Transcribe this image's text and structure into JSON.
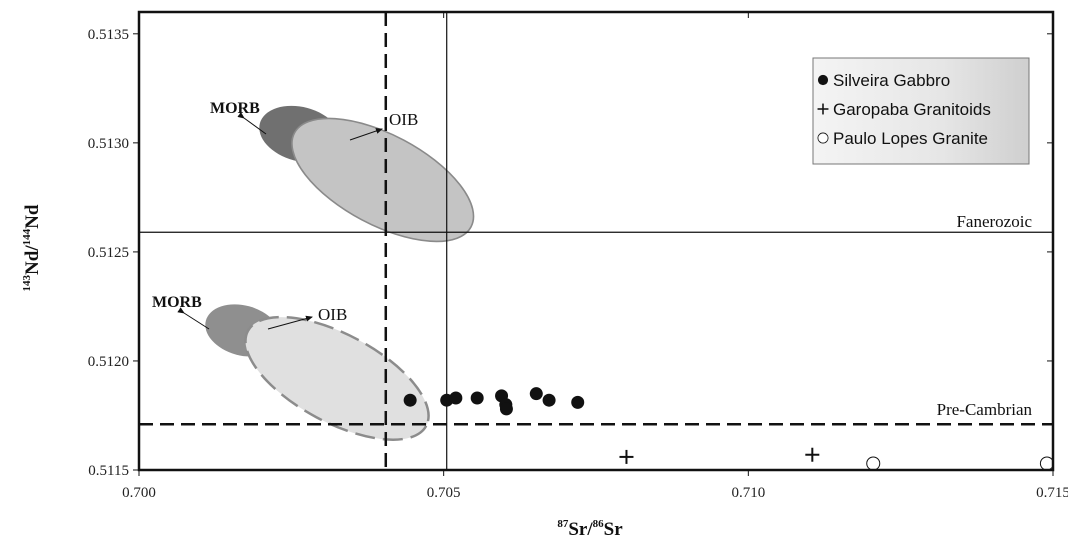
{
  "chart_data": {
    "type": "scatter",
    "title": "",
    "xlabel": {
      "iso_a": "87",
      "el_a": "Sr",
      "sep": "/",
      "iso_b": "86",
      "el_b": "Sr"
    },
    "ylabel": {
      "iso_a": "143",
      "el_a": "Nd",
      "sep": "/",
      "iso_b": "144",
      "el_b": "Nd"
    },
    "xlim": [
      0.7,
      0.715
    ],
    "ylim": [
      0.5115,
      0.5136
    ],
    "xticks": [
      "0.700",
      "0.705",
      "0.710",
      "0.715"
    ],
    "yticks": [
      "0.5115",
      "0.5120",
      "0.5125",
      "0.5130",
      "0.5135"
    ],
    "legend_position": "top-right",
    "series": [
      {
        "name": "Silveira Gabbro",
        "marker": "filled-circle",
        "color": "#111111",
        "points": [
          [
            0.70445,
            0.51182
          ],
          [
            0.70505,
            0.51182
          ],
          [
            0.7052,
            0.51183
          ],
          [
            0.70555,
            0.51183
          ],
          [
            0.70595,
            0.51184
          ],
          [
            0.70602,
            0.5118
          ],
          [
            0.70603,
            0.51178
          ],
          [
            0.70652,
            0.51185
          ],
          [
            0.70673,
            0.51182
          ],
          [
            0.7072,
            0.51181
          ]
        ]
      },
      {
        "name": "Garopaba Granitoids",
        "marker": "plus",
        "color": "#111111",
        "points": [
          [
            0.708,
            0.51156
          ],
          [
            0.71105,
            0.51157
          ]
        ]
      },
      {
        "name": "Paulo Lopes Granite",
        "marker": "open-circle",
        "color": "#111111",
        "points": [
          [
            0.71205,
            0.51153
          ],
          [
            0.7149,
            0.51153
          ]
        ]
      }
    ],
    "reference_lines": [
      {
        "orientation": "horizontal",
        "value": 0.51259,
        "style": "solid",
        "label": "Fanerozoic"
      },
      {
        "orientation": "horizontal",
        "value": 0.51171,
        "style": "dashed",
        "label": "Pre-Cambrian"
      },
      {
        "orientation": "vertical",
        "value": 0.70405,
        "style": "dashed"
      },
      {
        "orientation": "vertical",
        "value": 0.70505,
        "style": "solid"
      }
    ],
    "fields": [
      {
        "label": "MORB",
        "group": "upper",
        "center": [
          0.70265,
          0.51304
        ],
        "fill": "#707070"
      },
      {
        "label": "OIB",
        "group": "upper",
        "center": [
          0.704,
          0.51283
        ],
        "fill": "#c4c4c4"
      },
      {
        "label": "MORB",
        "group": "lower",
        "center": [
          0.7017,
          0.51214
        ],
        "fill": "#8f8f8f"
      },
      {
        "label": "OIB",
        "group": "lower",
        "center": [
          0.70325,
          0.51192
        ],
        "fill": "#e0e0e0"
      }
    ]
  }
}
